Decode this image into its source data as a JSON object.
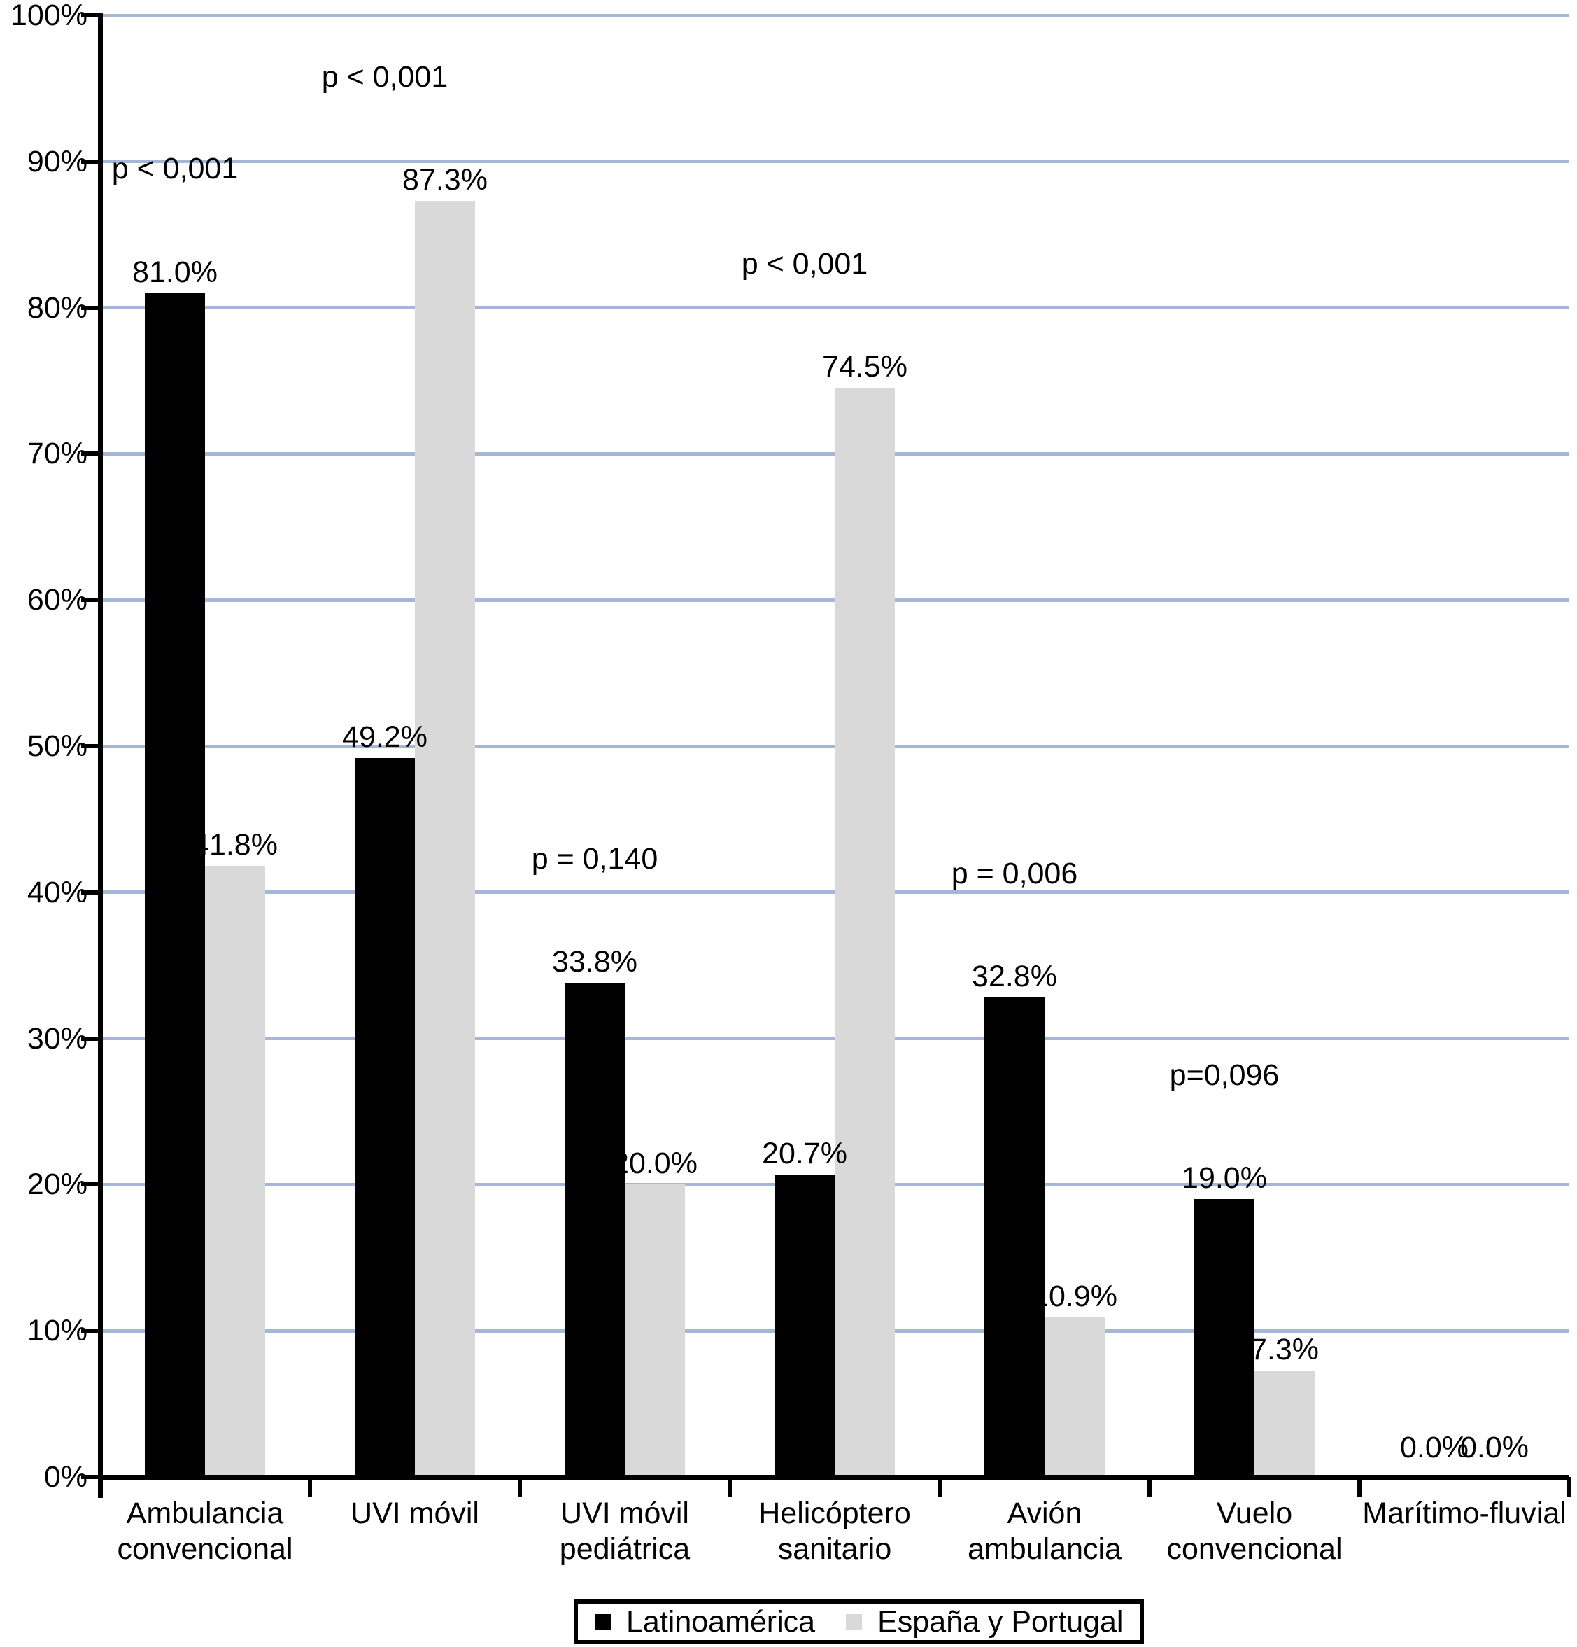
{
  "chart_data": {
    "type": "bar",
    "title": "",
    "xlabel": "",
    "ylabel": "",
    "ylim": [
      0,
      100
    ],
    "grid": true,
    "gridline_color": "#A5B7D6",
    "axis_color": "#000000",
    "background_color": "#ffffff",
    "y_ticks": [
      "0%",
      "10%",
      "20%",
      "30%",
      "40%",
      "50%",
      "60%",
      "70%",
      "80%",
      "90%",
      "100%"
    ],
    "categories": [
      "Ambulancia convencional",
      "UVI móvil",
      "UVI móvil pediátrica",
      "Helicóptero sanitario",
      "Avión ambulancia",
      "Vuelo convencional",
      "Marítimo-fluvial"
    ],
    "category_lines": [
      [
        "Ambulancia",
        "convencional"
      ],
      [
        "UVI móvil"
      ],
      [
        "UVI móvil",
        "pediátrica"
      ],
      [
        "Helicóptero",
        "sanitario"
      ],
      [
        "Avión",
        "ambulancia"
      ],
      [
        "Vuelo",
        "convencional"
      ],
      [
        "Marítimo-fluvial"
      ]
    ],
    "series": [
      {
        "name": "Latinoamérica",
        "color": "#000000",
        "values": [
          81.0,
          49.2,
          33.8,
          20.7,
          32.8,
          19.0,
          0.0
        ],
        "labels": [
          "81.0%",
          "49.2%",
          "33.8%",
          "20.7%",
          "32.8%",
          "19.0%",
          "0.0%"
        ]
      },
      {
        "name": "España y Portugal",
        "color": "#D9D9D9",
        "values": [
          41.8,
          87.3,
          20.0,
          74.5,
          10.9,
          7.3,
          0.0
        ],
        "labels": [
          "41.8%",
          "87.3%",
          "20.0%",
          "74.5%",
          "10.9%",
          "7.3%",
          "0.0%"
        ]
      }
    ],
    "p_values": [
      "p < 0,001",
      "p < 0,001",
      "p = 0,140",
      "p < 0,001",
      "p = 0,006",
      "p=0,096",
      ""
    ],
    "legend_position": "bottom",
    "legend": [
      "Latinoamérica",
      "España y Portugal"
    ]
  }
}
